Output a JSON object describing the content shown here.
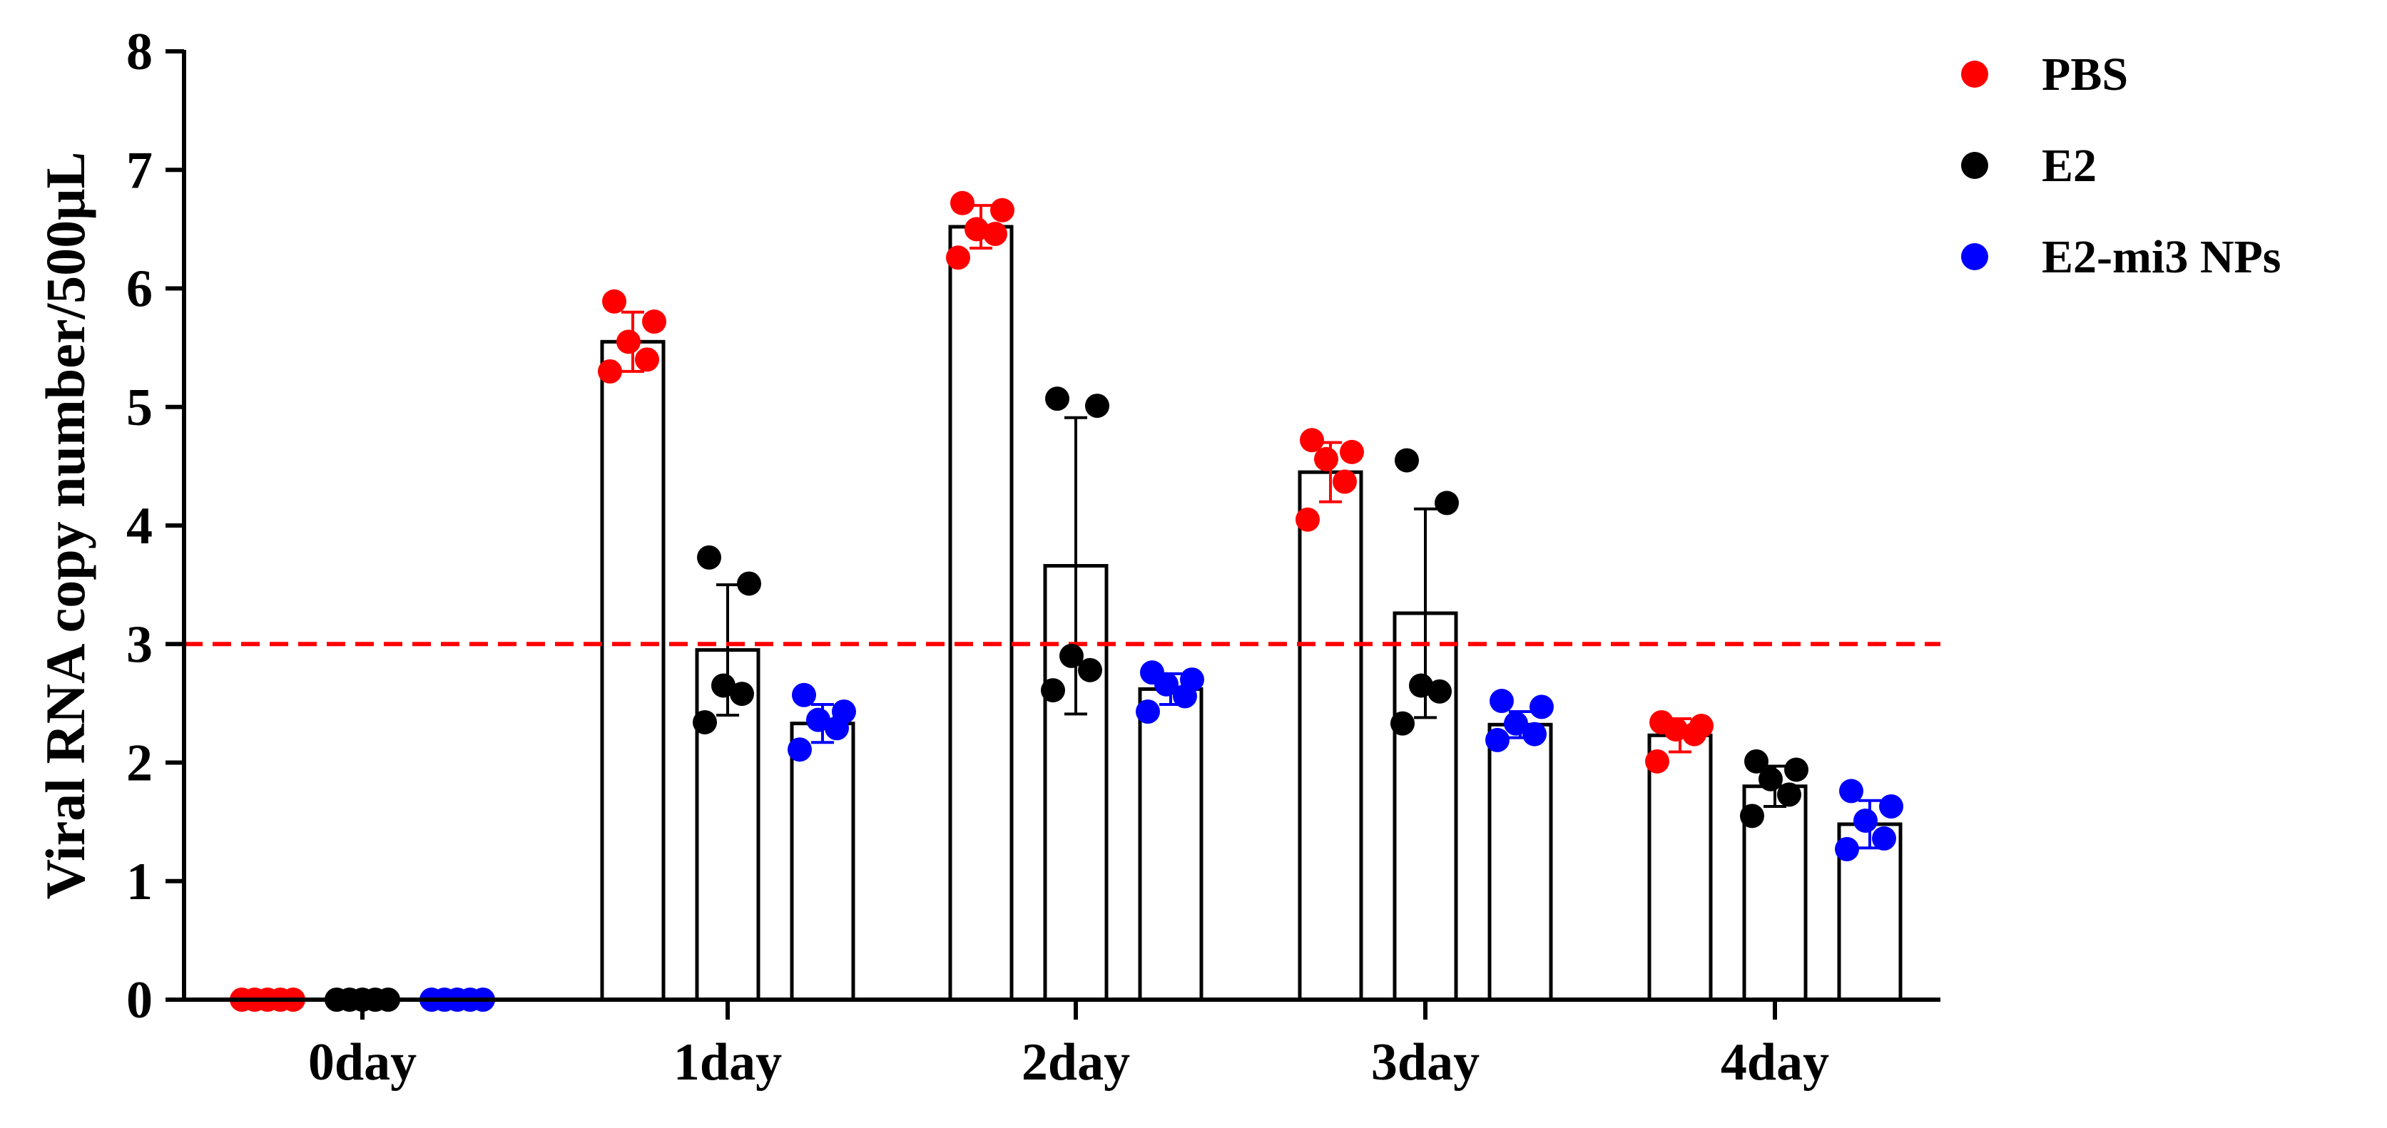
{
  "chart_data": {
    "type": "bar",
    "ylabel": "Viral RNA copy number/500μL",
    "xlabel": "",
    "ylim": [
      0,
      8
    ],
    "yticks": [
      0,
      1,
      2,
      3,
      4,
      5,
      6,
      7,
      8
    ],
    "categories": [
      "0day",
      "1day",
      "2day",
      "3day",
      "4day"
    ],
    "threshold": 3,
    "threshold_style": "red dashed line",
    "legend_position": "top-right",
    "series": [
      {
        "name": "PBS",
        "color": "#ff0000",
        "means": [
          0,
          5.55,
          6.52,
          4.45,
          2.23
        ],
        "sd": [
          0,
          0.25,
          0.18,
          0.25,
          0.14
        ],
        "points": [
          [
            0,
            0,
            0,
            0,
            0
          ],
          [
            5.89,
            5.72,
            5.55,
            5.4,
            5.3
          ],
          [
            6.72,
            6.66,
            6.5,
            6.46,
            6.26
          ],
          [
            4.72,
            4.62,
            4.56,
            4.37,
            4.05
          ],
          [
            2.34,
            2.31,
            2.28,
            2.24,
            2.01
          ]
        ]
      },
      {
        "name": "E2",
        "color": "#000000",
        "means": [
          0,
          2.95,
          3.66,
          3.26,
          1.8
        ],
        "sd": [
          0,
          0.55,
          1.25,
          0.88,
          0.17
        ],
        "points": [
          [
            0,
            0,
            0,
            0,
            0
          ],
          [
            3.73,
            3.51,
            2.65,
            2.58,
            2.34
          ],
          [
            5.07,
            5.01,
            2.9,
            2.78,
            2.61
          ],
          [
            4.55,
            4.19,
            2.65,
            2.6,
            2.33
          ],
          [
            2.01,
            1.94,
            1.86,
            1.73,
            1.55
          ]
        ]
      },
      {
        "name": "E2-mi3 NPs",
        "color": "#0000ff",
        "means": [
          0,
          2.33,
          2.62,
          2.32,
          1.48
        ],
        "sd": [
          0,
          0.16,
          0.13,
          0.11,
          0.2
        ],
        "points": [
          [
            0,
            0,
            0,
            0,
            0
          ],
          [
            2.57,
            2.43,
            2.36,
            2.29,
            2.11
          ],
          [
            2.76,
            2.7,
            2.66,
            2.56,
            2.43
          ],
          [
            2.52,
            2.47,
            2.33,
            2.24,
            2.19
          ],
          [
            1.76,
            1.63,
            1.51,
            1.36,
            1.27
          ]
        ]
      }
    ]
  }
}
